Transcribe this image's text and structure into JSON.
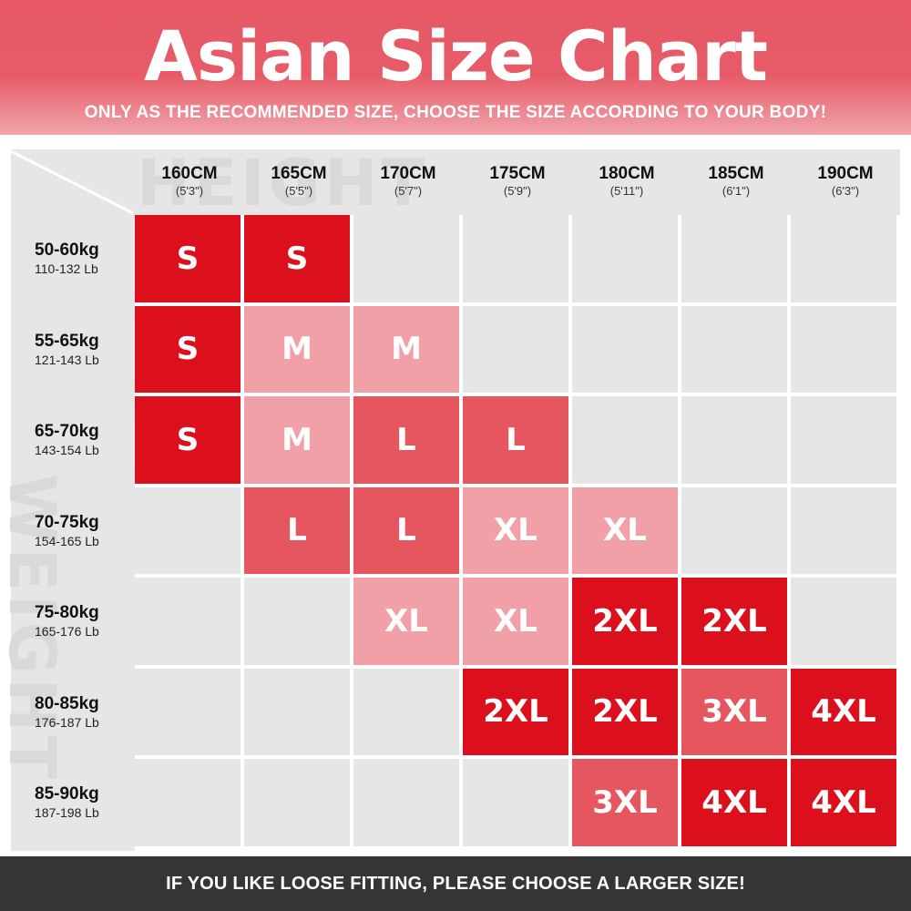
{
  "title": "Asian Size Chart",
  "subtitle": "ONLY AS THE RECOMMENDED SIZE, CHOOSE THE SIZE ACCORDING TO YOUR BODY!",
  "watermarks": {
    "height": "HEIGHT",
    "weight": "WEIGHT"
  },
  "footer": "IF YOU LIKE LOOSE FITTING, PLEASE CHOOSE A LARGER SIZE!",
  "colors": {
    "banner": "#e65866",
    "strong": "#dc0f1d",
    "medium": "#e5565f",
    "light": "#f2a0a8",
    "empty": "#e6e6e6",
    "footer": "#353535"
  },
  "chart_data": {
    "type": "table",
    "title": "Asian Size Chart",
    "columns": [
      {
        "cm": "160CM",
        "ft": "(5'3\")"
      },
      {
        "cm": "165CM",
        "ft": "(5'5\")"
      },
      {
        "cm": "170CM",
        "ft": "(5'7\")"
      },
      {
        "cm": "175CM",
        "ft": "(5'9\")"
      },
      {
        "cm": "180CM",
        "ft": "(5'11\")"
      },
      {
        "cm": "185CM",
        "ft": "(6'1\")"
      },
      {
        "cm": "190CM",
        "ft": "(6'3\")"
      }
    ],
    "rows": [
      {
        "kg": "50-60kg",
        "lb": "110-132 Lb"
      },
      {
        "kg": "55-65kg",
        "lb": "121-143 Lb"
      },
      {
        "kg": "65-70kg",
        "lb": "143-154 Lb"
      },
      {
        "kg": "70-75kg",
        "lb": "154-165 Lb"
      },
      {
        "kg": "75-80kg",
        "lb": "165-176 Lb"
      },
      {
        "kg": "80-85kg",
        "lb": "176-187 Lb"
      },
      {
        "kg": "85-90kg",
        "lb": "187-198 Lb"
      }
    ],
    "cells": [
      [
        {
          "size": "S",
          "shade": "strong"
        },
        {
          "size": "S",
          "shade": "strong"
        },
        {
          "size": "",
          "shade": "empty"
        },
        {
          "size": "",
          "shade": "empty"
        },
        {
          "size": "",
          "shade": "empty"
        },
        {
          "size": "",
          "shade": "empty"
        },
        {
          "size": "",
          "shade": "empty"
        }
      ],
      [
        {
          "size": "S",
          "shade": "strong"
        },
        {
          "size": "M",
          "shade": "light"
        },
        {
          "size": "M",
          "shade": "light"
        },
        {
          "size": "",
          "shade": "empty"
        },
        {
          "size": "",
          "shade": "empty"
        },
        {
          "size": "",
          "shade": "empty"
        },
        {
          "size": "",
          "shade": "empty"
        }
      ],
      [
        {
          "size": "S",
          "shade": "strong"
        },
        {
          "size": "M",
          "shade": "light"
        },
        {
          "size": "L",
          "shade": "medium"
        },
        {
          "size": "L",
          "shade": "medium"
        },
        {
          "size": "",
          "shade": "empty"
        },
        {
          "size": "",
          "shade": "empty"
        },
        {
          "size": "",
          "shade": "empty"
        }
      ],
      [
        {
          "size": "",
          "shade": "empty"
        },
        {
          "size": "L",
          "shade": "medium"
        },
        {
          "size": "L",
          "shade": "medium"
        },
        {
          "size": "XL",
          "shade": "light"
        },
        {
          "size": "XL",
          "shade": "light"
        },
        {
          "size": "",
          "shade": "empty"
        },
        {
          "size": "",
          "shade": "empty"
        }
      ],
      [
        {
          "size": "",
          "shade": "empty"
        },
        {
          "size": "",
          "shade": "empty"
        },
        {
          "size": "XL",
          "shade": "light"
        },
        {
          "size": "XL",
          "shade": "light"
        },
        {
          "size": "2XL",
          "shade": "strong"
        },
        {
          "size": "2XL",
          "shade": "strong"
        },
        {
          "size": "",
          "shade": "empty"
        }
      ],
      [
        {
          "size": "",
          "shade": "empty"
        },
        {
          "size": "",
          "shade": "empty"
        },
        {
          "size": "",
          "shade": "empty"
        },
        {
          "size": "2XL",
          "shade": "strong"
        },
        {
          "size": "2XL",
          "shade": "strong"
        },
        {
          "size": "3XL",
          "shade": "medium"
        },
        {
          "size": "4XL",
          "shade": "strong"
        }
      ],
      [
        {
          "size": "",
          "shade": "empty"
        },
        {
          "size": "",
          "shade": "empty"
        },
        {
          "size": "",
          "shade": "empty"
        },
        {
          "size": "",
          "shade": "empty"
        },
        {
          "size": "3XL",
          "shade": "medium"
        },
        {
          "size": "4XL",
          "shade": "strong"
        },
        {
          "size": "4XL",
          "shade": "strong"
        }
      ]
    ]
  }
}
